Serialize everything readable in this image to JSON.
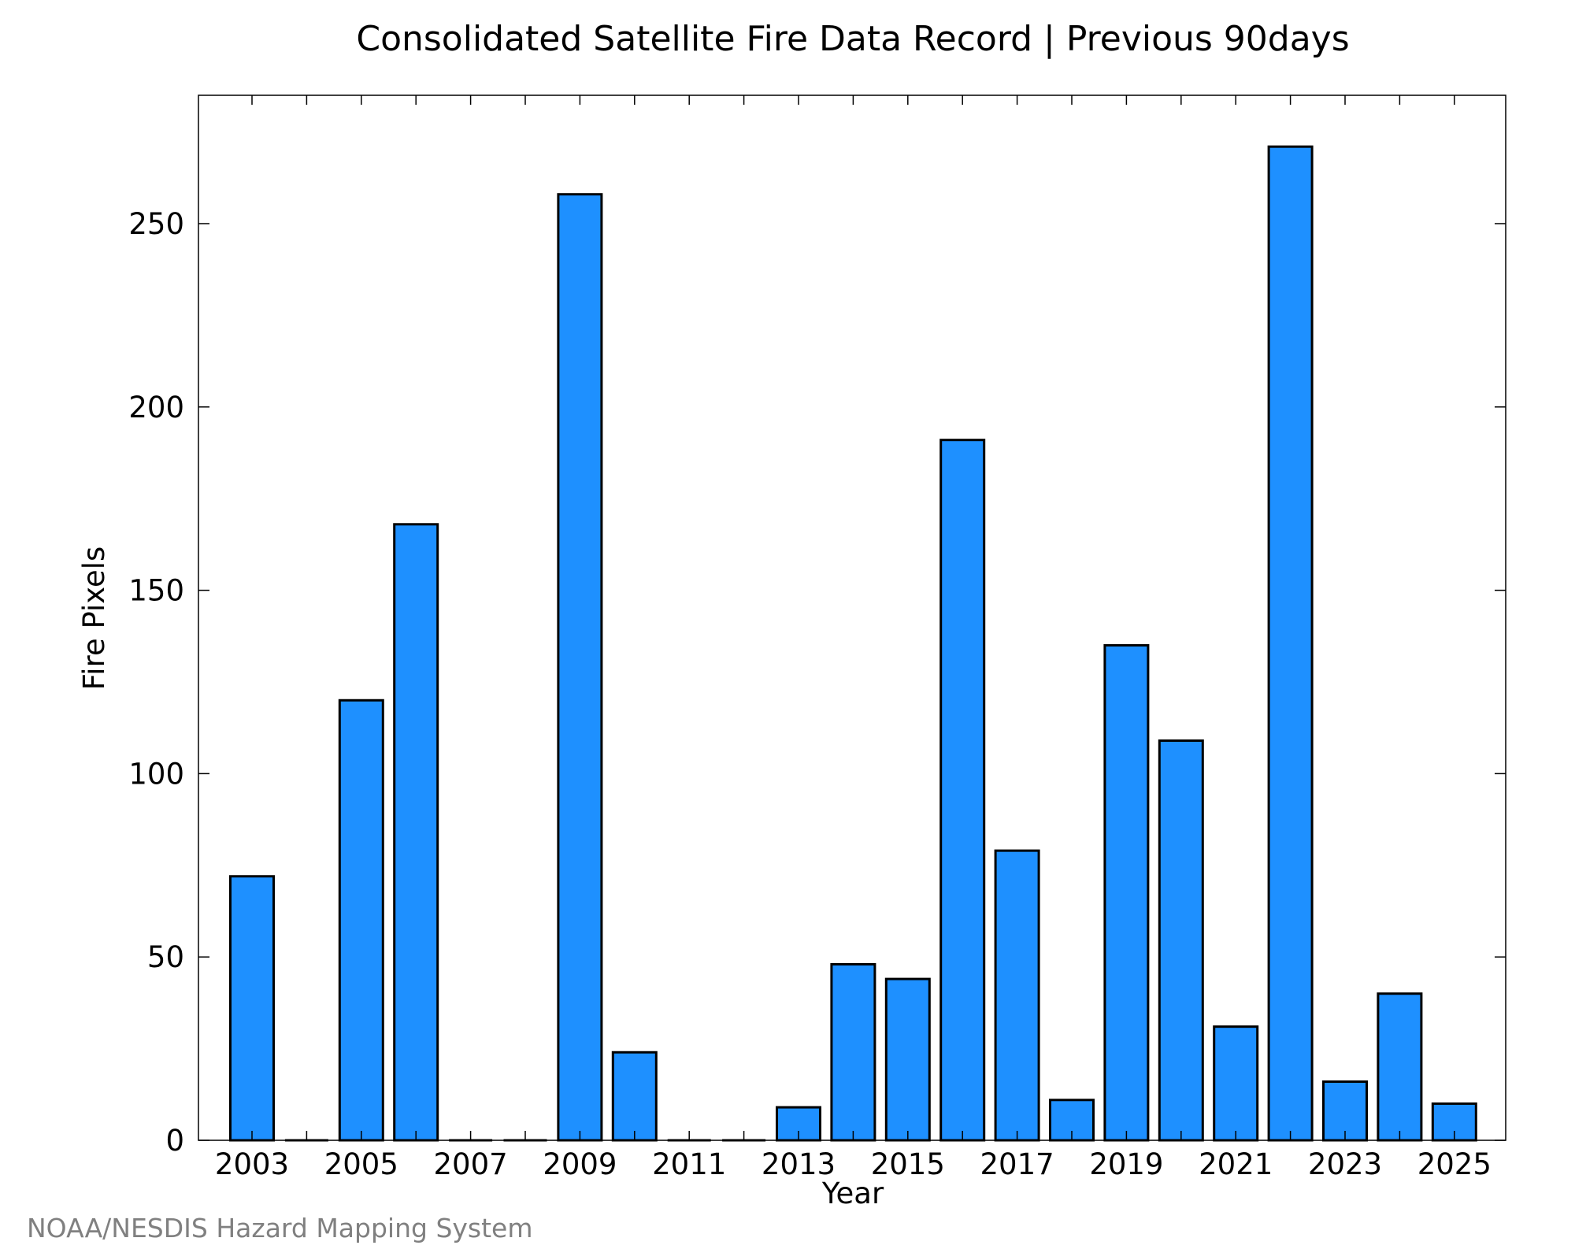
{
  "chart_data": {
    "type": "bar",
    "title": "Consolidated Satellite Fire Data Record | Previous 90days",
    "xlabel": "Year",
    "ylabel": "Fire Pixels",
    "categories": [
      "2003",
      "2004",
      "2005",
      "2006",
      "2007",
      "2008",
      "2009",
      "2010",
      "2011",
      "2012",
      "2013",
      "2014",
      "2015",
      "2016",
      "2017",
      "2018",
      "2019",
      "2020",
      "2021",
      "2022",
      "2023",
      "2024",
      "2025"
    ],
    "values": [
      72,
      0,
      120,
      168,
      0,
      0,
      258,
      24,
      0,
      0,
      9,
      48,
      44,
      191,
      79,
      11,
      135,
      109,
      31,
      271,
      16,
      40,
      10
    ],
    "x_tick_labels": [
      "2003",
      "2005",
      "2007",
      "2009",
      "2011",
      "2013",
      "2015",
      "2017",
      "2019",
      "2021",
      "2023",
      "2025"
    ],
    "y_ticks": [
      0,
      50,
      100,
      150,
      200,
      250
    ],
    "ylim": [
      0,
      285
    ],
    "grid": false,
    "colors": {
      "bar": "#1e90ff",
      "edge": "#000000"
    }
  },
  "credit": "NOAA/NESDIS Hazard Mapping System"
}
